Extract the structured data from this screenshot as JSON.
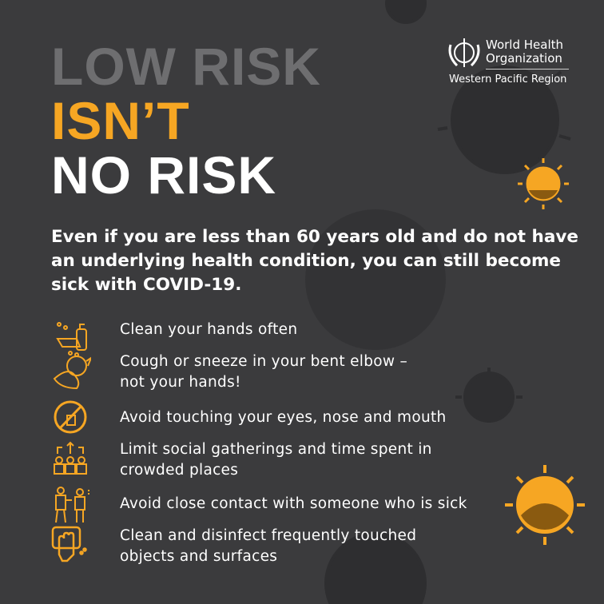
{
  "colors": {
    "background": "#3b3b3d",
    "accent": "#f6a623",
    "muted": "#6e6e70",
    "text": "#ffffff"
  },
  "logo": {
    "name_line1": "World Health",
    "name_line2": "Organization",
    "region": "Western Pacific Region",
    "icon": "who-emblem-icon"
  },
  "headline": {
    "line1": "LOW RISK",
    "line2": "ISN’T",
    "line3": "NO RISK"
  },
  "subheading": "Even if you are less than 60 years old and do not have an underlying health condition, you can still become sick with COVID-19.",
  "tips": [
    {
      "icon": "hand-washing-icon",
      "line1": "Clean your hands often",
      "line2": ""
    },
    {
      "icon": "sneeze-elbow-icon",
      "line1": "Cough or sneeze in your bent elbow –",
      "line2": "not your hands!"
    },
    {
      "icon": "no-face-touching-icon",
      "line1": "Avoid touching your eyes, nose and mouth",
      "line2": ""
    },
    {
      "icon": "crowd-dispersing-icon",
      "line1": "Limit social gatherings and time spent in",
      "line2": "crowded places"
    },
    {
      "icon": "sick-contact-icon",
      "line1": "Avoid close contact with someone who is sick",
      "line2": ""
    },
    {
      "icon": "surface-cleaning-icon",
      "line1": "Clean and disinfect frequently touched",
      "line2": "objects and surfaces"
    }
  ]
}
